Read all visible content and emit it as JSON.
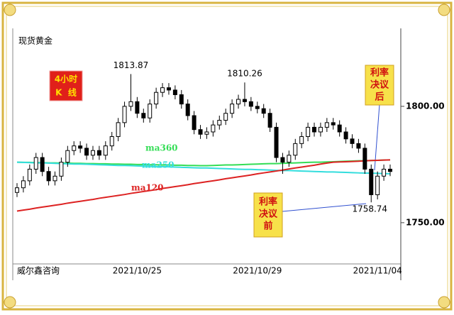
{
  "chart_data": {
    "type": "candlestick",
    "title": "现货黄金",
    "source": "威尔鑫咨询",
    "badge": [
      "4小时",
      "K  线"
    ],
    "notes": [
      [
        "利率",
        "决议",
        "后"
      ],
      [
        "利率",
        "决议",
        "前"
      ]
    ],
    "categories": [
      null,
      null,
      null,
      null,
      null,
      null,
      null,
      null,
      null,
      null,
      null,
      null,
      null,
      null,
      null,
      null,
      null,
      null,
      null,
      "2021/10/25",
      null,
      null,
      null,
      null,
      null,
      null,
      null,
      null,
      null,
      null,
      null,
      null,
      null,
      null,
      null,
      null,
      null,
      null,
      "2021/10/29",
      null,
      null,
      null,
      null,
      null,
      null,
      null,
      null,
      null,
      null,
      null,
      null,
      null,
      null,
      null,
      null,
      null,
      null,
      "2021/11/04",
      null,
      null
    ],
    "open": [
      1763,
      1765,
      1768,
      1773,
      1778,
      1772,
      1768,
      1770,
      1776,
      1781,
      1783,
      1782,
      1779,
      1781,
      1779,
      1783,
      1787,
      1793,
      1800,
      1802,
      1797,
      1795,
      1801,
      1806,
      1808,
      1807,
      1805,
      1801,
      1796,
      1790,
      1788,
      1789,
      1792,
      1794,
      1797,
      1801,
      1803,
      1802,
      1800,
      1799,
      1797,
      1791,
      1778,
      1776,
      1779,
      1784,
      1787,
      1791,
      1789,
      1791,
      1793,
      1792,
      1789,
      1786,
      1784,
      1782,
      1773,
      1762,
      1770,
      1773
    ],
    "high": [
      1767,
      1770,
      1775,
      1780,
      1780,
      1774,
      1772,
      1778,
      1783,
      1785,
      1785,
      1784,
      1783,
      1783,
      1785,
      1789,
      1795,
      1802,
      1813.87,
      1804,
      1799,
      1803,
      1808,
      1810,
      1810,
      1809,
      1807,
      1803,
      1798,
      1792,
      1791,
      1794,
      1796,
      1799,
      1803,
      1805,
      1810.26,
      1804,
      1802,
      1801,
      1799,
      1793,
      1780,
      1781,
      1786,
      1789,
      1793,
      1793,
      1793,
      1795,
      1795,
      1794,
      1791,
      1788,
      1786,
      1784,
      1775,
      1772,
      1775,
      1775
    ],
    "low": [
      1761,
      1763,
      1766,
      1771,
      1770,
      1766,
      1766,
      1768,
      1774,
      1779,
      1780,
      1777,
      1777,
      1777,
      1777,
      1781,
      1785,
      1791,
      1798,
      1795,
      1793,
      1793,
      1799,
      1804,
      1805,
      1803,
      1799,
      1794,
      1788,
      1786,
      1786,
      1787,
      1790,
      1792,
      1795,
      1799,
      1800,
      1798,
      1797,
      1795,
      1789,
      1776,
      1771,
      1774,
      1777,
      1782,
      1785,
      1787,
      1787,
      1789,
      1790,
      1787,
      1784,
      1782,
      1780,
      1771,
      1758.74,
      1760,
      1768,
      1770
    ],
    "close": [
      1765,
      1768,
      1773,
      1778,
      1772,
      1768,
      1770,
      1776,
      1781,
      1783,
      1782,
      1779,
      1781,
      1779,
      1783,
      1787,
      1793,
      1800,
      1802,
      1797,
      1795,
      1801,
      1806,
      1808,
      1807,
      1805,
      1801,
      1796,
      1790,
      1788,
      1789,
      1792,
      1794,
      1797,
      1801,
      1803,
      1802,
      1800,
      1799,
      1797,
      1791,
      1778,
      1776,
      1779,
      1784,
      1787,
      1791,
      1789,
      1791,
      1793,
      1792,
      1789,
      1786,
      1784,
      1782,
      1773,
      1762,
      1770,
      1773,
      1772
    ],
    "series": [
      {
        "name": "ma360",
        "color": "#33dd55",
        "values": [
          1776,
          1775.9,
          1775.9,
          1775.8,
          1775.8,
          1775.7,
          1775.7,
          1775.6,
          1775.6,
          1775.5,
          1775.5,
          1775.4,
          1775.4,
          1775.3,
          1775.3,
          1775.2,
          1775.2,
          1775.1,
          1775.1,
          1775,
          1775,
          1774.9,
          1774.9,
          1774.8,
          1774.8,
          1774.7,
          1774.7,
          1774.6,
          1774.6,
          1774.5,
          1774.5,
          1774.6,
          1774.7,
          1774.8,
          1774.8,
          1774.9,
          1775,
          1775.1,
          1775.2,
          1775.3,
          1775.4,
          1775.4,
          1775.5,
          1775.6,
          1775.7,
          1775.8,
          1775.9,
          1776,
          1776,
          1776.1,
          1776.2,
          1776.3,
          1776.4,
          1776.5,
          1776.6,
          1776.6,
          1776.7,
          1776.8,
          1776.9,
          1777
        ]
      },
      {
        "name": "ma250",
        "color": "#33dddd",
        "values": [
          1776,
          1775.9,
          1775.8,
          1775.7,
          1775.7,
          1775.6,
          1775.5,
          1775.4,
          1775.3,
          1775.2,
          1775.2,
          1775.1,
          1775,
          1774.9,
          1774.8,
          1774.7,
          1774.6,
          1774.6,
          1774.5,
          1774.4,
          1774.3,
          1774.2,
          1774.1,
          1774.1,
          1774,
          1773.9,
          1773.8,
          1773.7,
          1773.6,
          1773.5,
          1773.5,
          1773.4,
          1773.3,
          1773.2,
          1773.1,
          1773,
          1772.9,
          1772.9,
          1772.8,
          1772.7,
          1772.6,
          1772.5,
          1772.4,
          1772.4,
          1772.3,
          1772.2,
          1772.1,
          1772,
          1771.9,
          1771.8,
          1771.8,
          1771.7,
          1771.6,
          1771.5,
          1771.4,
          1771.3,
          1771.3,
          1771.2,
          1771.1,
          1771
        ]
      },
      {
        "name": "ma120",
        "color": "#dd2222",
        "values": [
          1755,
          1755.4,
          1755.8,
          1756.3,
          1756.7,
          1757.1,
          1757.5,
          1757.9,
          1758.4,
          1758.8,
          1759.2,
          1759.6,
          1760,
          1760.5,
          1760.9,
          1761.3,
          1761.7,
          1762.1,
          1762.6,
          1763,
          1763.4,
          1763.8,
          1764.2,
          1764.7,
          1765.1,
          1765.5,
          1765.9,
          1766.3,
          1766.8,
          1767.2,
          1767.6,
          1768,
          1768.4,
          1768.9,
          1769.3,
          1769.7,
          1770.1,
          1770.5,
          1771,
          1771.4,
          1771.8,
          1772.2,
          1772.6,
          1773.1,
          1773.5,
          1773.9,
          1774.3,
          1774.7,
          1775.2,
          1775.6,
          1776,
          1776.1,
          1776.2,
          1776.3,
          1776.4,
          1776.6,
          1776.7,
          1776.8,
          1776.9,
          1777
        ]
      }
    ],
    "ylim": [
      1733.5,
      1833.5
    ],
    "yticks": [
      {
        "value": 1750,
        "label": "1750.00"
      },
      {
        "value": 1800,
        "label": "1800.00"
      }
    ]
  }
}
